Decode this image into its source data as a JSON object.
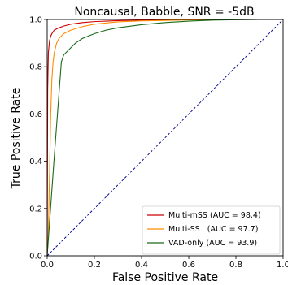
{
  "chart_data": {
    "type": "line",
    "title": "Noncausal, Babble, SNR = -5dB",
    "xlabel": "False Positive Rate",
    "ylabel": "True Positive Rate",
    "xlim": [
      0,
      1
    ],
    "ylim": [
      0,
      1
    ],
    "xticks": [
      0.0,
      0.2,
      0.4,
      0.6,
      0.8,
      1.0
    ],
    "yticks": [
      0.0,
      0.2,
      0.4,
      0.6,
      0.8,
      1.0
    ],
    "tick_labels": [
      "0.0",
      "0.2",
      "0.4",
      "0.6",
      "0.8",
      "1.0"
    ],
    "grid": false,
    "legend_position": "lower-right",
    "series": [
      {
        "name": "Multi-mSS (AUC = 98.4)",
        "color": "#cc0000",
        "x": [
          0.0,
          0.002,
          0.005,
          0.01,
          0.015,
          0.02,
          0.03,
          0.05,
          0.07,
          0.1,
          0.15,
          0.2,
          0.3,
          0.4,
          0.5,
          0.6,
          0.7,
          0.8,
          0.9,
          1.0
        ],
        "y": [
          0.0,
          0.7,
          0.86,
          0.91,
          0.93,
          0.94,
          0.955,
          0.965,
          0.972,
          0.98,
          0.987,
          0.991,
          0.995,
          0.997,
          0.998,
          0.999,
          0.9995,
          0.9998,
          1.0,
          1.0
        ]
      },
      {
        "name": "Multi-SS   (AUC = 97.7)",
        "color": "#ff8c00",
        "x": [
          0.0,
          0.005,
          0.01,
          0.015,
          0.02,
          0.025,
          0.03,
          0.04,
          0.05,
          0.07,
          0.1,
          0.15,
          0.2,
          0.3,
          0.4,
          0.5,
          0.6,
          0.7,
          0.8,
          1.0
        ],
        "y": [
          0.0,
          0.1,
          0.35,
          0.6,
          0.75,
          0.82,
          0.86,
          0.9,
          0.92,
          0.94,
          0.955,
          0.97,
          0.98,
          0.99,
          0.994,
          0.996,
          0.998,
          0.999,
          1.0,
          1.0
        ]
      },
      {
        "name": "VAD-only (AUC = 93.9)",
        "color": "#1a6b1a",
        "x": [
          0.0,
          0.03,
          0.06,
          0.07,
          0.1,
          0.12,
          0.15,
          0.2,
          0.25,
          0.3,
          0.4,
          0.5,
          0.6,
          0.7,
          0.8,
          0.9,
          1.0
        ],
        "y": [
          0.0,
          0.42,
          0.82,
          0.85,
          0.88,
          0.9,
          0.92,
          0.94,
          0.955,
          0.965,
          0.978,
          0.987,
          0.993,
          0.997,
          0.999,
          1.0,
          1.0
        ]
      },
      {
        "name": "",
        "color": "#00008b",
        "dashed": true,
        "x": [
          0.0,
          1.0
        ],
        "y": [
          0.0,
          1.0
        ]
      }
    ]
  }
}
